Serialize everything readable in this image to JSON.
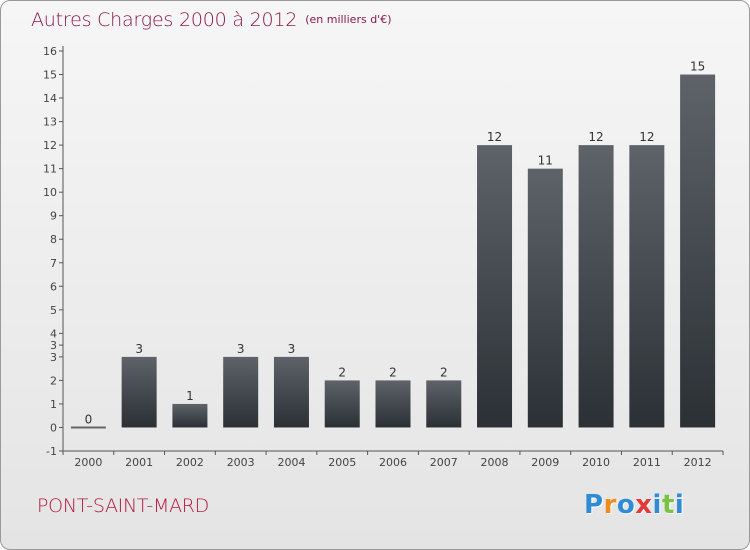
{
  "header": {
    "title": "Autres Charges 2000 à 2012",
    "subtitle": "(en milliers d'€)"
  },
  "footer": {
    "commune": "PONT-SAINT-MARD",
    "brand_letters": [
      "P",
      "r",
      "o",
      "x",
      "i",
      "t",
      "i"
    ],
    "brand_colors": [
      "#2e8bd6",
      "#f08b1e",
      "#2e8bd6",
      "#e23a3a",
      "#2e8bd6",
      "#7cc242",
      "#2e8bd6"
    ]
  },
  "colors": {
    "bar_top": "#5d6368",
    "bar_bottom": "#2b3035",
    "axis": "#555555",
    "title": "#8a1a4a",
    "commune": "#b5163f"
  },
  "chart_data": {
    "type": "bar",
    "title": "Autres Charges 2000 à 2012",
    "subtitle": "(en milliers d'€)",
    "categories": [
      "2000",
      "2001",
      "2002",
      "2003",
      "2004",
      "2005",
      "2006",
      "2007",
      "2008",
      "2009",
      "2010",
      "2011",
      "2012"
    ],
    "values": [
      0,
      3,
      1,
      3,
      3,
      2,
      2,
      2,
      12,
      11,
      12,
      12,
      15
    ],
    "ylim": [
      -1,
      16
    ],
    "yticks": [
      "-1",
      "0",
      "1",
      "2",
      "3",
      "3",
      "4",
      "5",
      "6",
      "7",
      "8",
      "9",
      "10",
      "11",
      "12",
      "13",
      "14",
      "15",
      "16"
    ],
    "xlabel": "",
    "ylabel": "",
    "grid": false,
    "legend": "none"
  }
}
